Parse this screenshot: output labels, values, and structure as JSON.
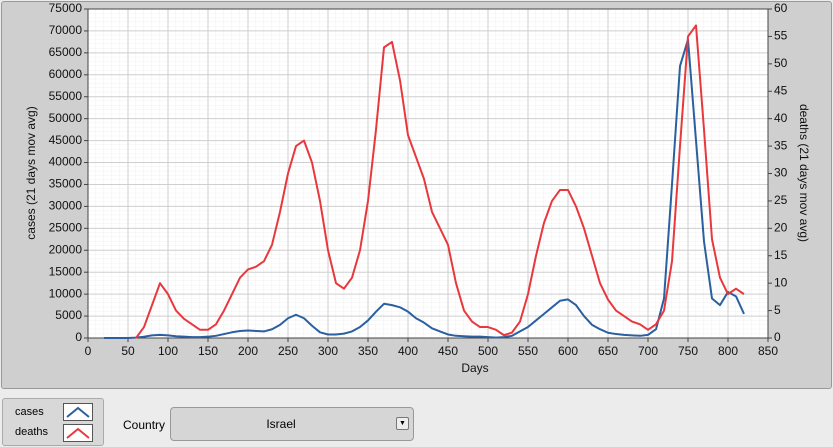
{
  "chart_data": {
    "type": "line",
    "xlabel": "Days",
    "ylabel": "cases  (21 days mov avg)",
    "y2label": "deaths  (21 days mov avg)",
    "x": [
      20,
      30,
      40,
      50,
      60,
      70,
      80,
      90,
      100,
      110,
      120,
      130,
      140,
      150,
      160,
      170,
      180,
      190,
      200,
      210,
      220,
      230,
      240,
      250,
      260,
      270,
      280,
      290,
      300,
      310,
      320,
      330,
      340,
      350,
      360,
      370,
      380,
      390,
      400,
      410,
      420,
      430,
      440,
      450,
      460,
      470,
      480,
      490,
      500,
      510,
      520,
      530,
      540,
      550,
      560,
      570,
      580,
      590,
      600,
      610,
      620,
      630,
      640,
      650,
      660,
      670,
      680,
      690,
      700,
      710,
      720,
      730,
      740,
      750,
      760,
      770,
      780,
      790,
      800,
      810,
      820
    ],
    "series": [
      {
        "name": "cases",
        "color": "#2a5fa0",
        "values": [
          0,
          0,
          0,
          0,
          100,
          300,
          600,
          700,
          600,
          400,
          300,
          200,
          200,
          300,
          500,
          900,
          1300,
          1600,
          1700,
          1600,
          1500,
          2000,
          3000,
          4500,
          5300,
          4500,
          2800,
          1300,
          800,
          800,
          1000,
          1500,
          2500,
          4000,
          6000,
          7800,
          7500,
          7000,
          6000,
          4500,
          3500,
          2200,
          1500,
          800,
          500,
          400,
          300,
          300,
          200,
          100,
          200,
          500,
          1500,
          2500,
          4000,
          5500,
          7000,
          8500,
          8800,
          7500,
          5000,
          3000,
          2000,
          1200,
          900,
          700,
          600,
          500,
          700,
          2000,
          9000,
          35000,
          62000,
          68000,
          45000,
          22000,
          9000,
          7500,
          10500,
          9500,
          5500
        ]
      },
      {
        "name": "deaths",
        "color": "#e8383d",
        "axis": "y2",
        "values": [
          null,
          null,
          null,
          null,
          0,
          2,
          6,
          10,
          8,
          5,
          3.5,
          2.5,
          1.5,
          1.5,
          2.5,
          5,
          8,
          11,
          12.5,
          13,
          14,
          17,
          23,
          30,
          35,
          36,
          32,
          25,
          16,
          10,
          9,
          11,
          16,
          25,
          38,
          53,
          54,
          47,
          37,
          33,
          29,
          23,
          20,
          17,
          10,
          5,
          3,
          2,
          2,
          1.5,
          0.5,
          1,
          3,
          8,
          15,
          21,
          25,
          27,
          27,
          24,
          20,
          15,
          10,
          7,
          5,
          4,
          3,
          2.5,
          1.5,
          2.5,
          5,
          14,
          35,
          55,
          57,
          38,
          18,
          11,
          8,
          9,
          8
        ]
      }
    ],
    "xlim": [
      0,
      850
    ],
    "xticks": [
      0,
      50,
      100,
      150,
      200,
      250,
      300,
      350,
      400,
      450,
      500,
      550,
      600,
      650,
      700,
      750,
      800,
      850
    ],
    "ylim": [
      0,
      75000
    ],
    "yticks": [
      0,
      5000,
      10000,
      15000,
      20000,
      25000,
      30000,
      35000,
      40000,
      45000,
      50000,
      55000,
      60000,
      65000,
      70000,
      75000
    ],
    "y2lim": [
      0,
      60
    ],
    "y2ticks": [
      0,
      5,
      10,
      15,
      20,
      25,
      30,
      35,
      40,
      45,
      50,
      55,
      60
    ],
    "grid": true
  },
  "controls": {
    "country_label": "Country",
    "country_value": "Israel"
  }
}
